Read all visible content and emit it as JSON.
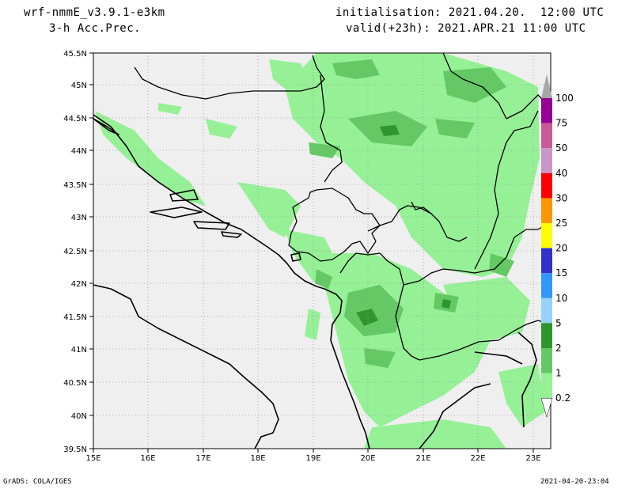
{
  "header": {
    "model": "wrf-nmmE_v3.9.1-e3km",
    "field": "3-h Acc.Prec.",
    "init": "initialisation: 2021.04.20.  12:00 UTC",
    "valid": "valid(+23h): 2021.APR.21 11:00 UTC"
  },
  "footer": {
    "left": "GrADS: COLA/IGES",
    "right": "2021-04-20-23:04"
  },
  "map": {
    "lon_range": [
      15,
      23.3
    ],
    "lat_range": [
      39.5,
      45.5
    ],
    "lat_ticks": [
      "45.5N",
      "45N",
      "44.5N",
      "44N",
      "43.5N",
      "43N",
      "42.5N",
      "42N",
      "41.5N",
      "41N",
      "40.5N",
      "40N",
      "39.5N"
    ],
    "lon_ticks": [
      "15E",
      "16E",
      "17E",
      "18E",
      "19E",
      "20E",
      "21E",
      "22E",
      "23E"
    ],
    "ocean_color": "#efefef",
    "coast_color": "#000000"
  },
  "colorbar": {
    "labels": [
      "100",
      "75",
      "50",
      "40",
      "30",
      "25",
      "20",
      "15",
      "10",
      "5",
      "2",
      "1",
      "0.2"
    ],
    "colors": [
      "#a6a6a6",
      "#960096",
      "#c85a96",
      "#c896c8",
      "#ff0000",
      "#ff9600",
      "#ffff00",
      "#3232c8",
      "#3296ff",
      "#96d2fa",
      "#2d962d",
      "#64c864",
      "#96f096"
    ]
  }
}
